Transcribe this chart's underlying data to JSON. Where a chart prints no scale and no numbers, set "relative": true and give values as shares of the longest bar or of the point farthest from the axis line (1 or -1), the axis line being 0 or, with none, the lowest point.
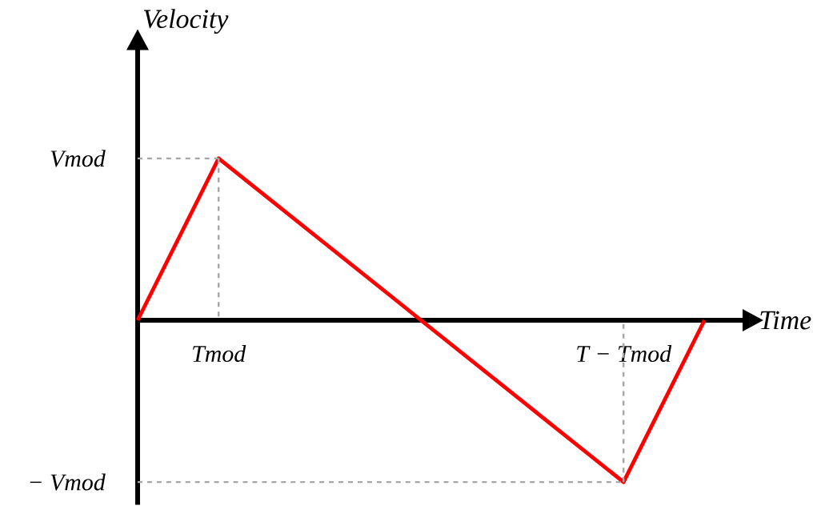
{
  "chart_data": {
    "type": "line",
    "xlabel": "Time",
    "ylabel": "Velocity",
    "relative": true,
    "categories": [
      null,
      "Tmod",
      null,
      null,
      null,
      null,
      "T − Tmod",
      null
    ],
    "series": [
      {
        "color": "#ff0000",
        "values": [
          0,
          1,
          0.6,
          0.2,
          -0.2,
          -0.6,
          -1,
          0
        ]
      }
    ],
    "annotations": [
      "Vmod",
      "− Vmod"
    ],
    "marker": "none",
    "line_style": "solid"
  }
}
